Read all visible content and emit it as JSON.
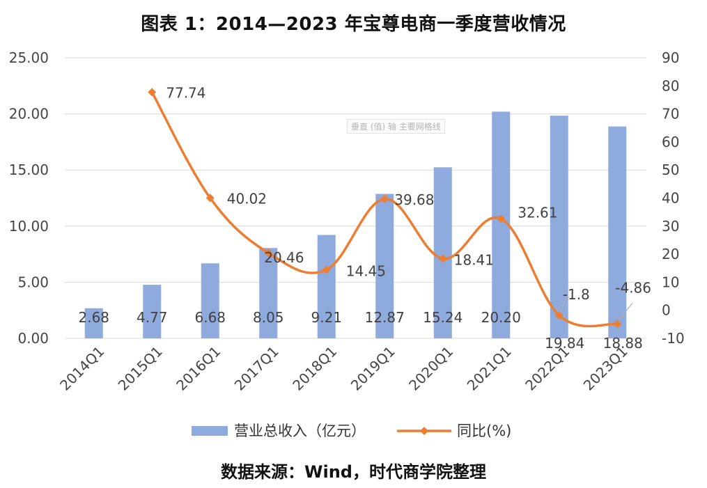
{
  "page": {
    "title": "图表 1：2014—2023 年宝尊电商一季度营收情况",
    "source": "数据来源：Wind，时代商学院整理",
    "tooltip": "垂直 (值) 轴 主要网格线"
  },
  "chart_data": {
    "type": "bar+line",
    "categories": [
      "2014Q1",
      "2015Q1",
      "2016Q1",
      "2017Q1",
      "2018Q1",
      "2019Q1",
      "2020Q1",
      "2021Q1",
      "2022Q1",
      "2023Q1"
    ],
    "series": [
      {
        "name": "营业总收入（亿元）",
        "type": "bar",
        "axis": "left",
        "color": "#8faadc",
        "values": [
          2.68,
          4.77,
          6.68,
          8.05,
          9.21,
          12.87,
          15.24,
          20.2,
          19.84,
          18.88
        ],
        "labels": [
          "2.68",
          "4.77",
          "6.68",
          "8.05",
          "9.21",
          "12.87",
          "15.24",
          "20.20",
          "19.84",
          "18.88"
        ]
      },
      {
        "name": "同比(%)",
        "type": "line",
        "axis": "right",
        "color": "#ed7d31",
        "values": [
          null,
          77.74,
          40.02,
          20.46,
          14.45,
          39.68,
          18.41,
          32.61,
          -1.8,
          -4.86
        ],
        "labels": [
          "",
          "77.74",
          "40.02",
          "20.46",
          "14.45",
          "39.68",
          "18.41",
          "32.61",
          "-1.8",
          "-4.86"
        ]
      }
    ],
    "y_left": {
      "min": 0,
      "max": 25,
      "step": 5,
      "tick_labels": [
        "0.00",
        "5.00",
        "10.00",
        "15.00",
        "20.00",
        "25.00"
      ]
    },
    "y_right": {
      "min": -10,
      "max": 90,
      "step": 10,
      "tick_labels": [
        "-10",
        "0",
        "10",
        "20",
        "30",
        "40",
        "50",
        "60",
        "70",
        "80",
        "90"
      ]
    },
    "grid": true,
    "legend": "bottom"
  }
}
